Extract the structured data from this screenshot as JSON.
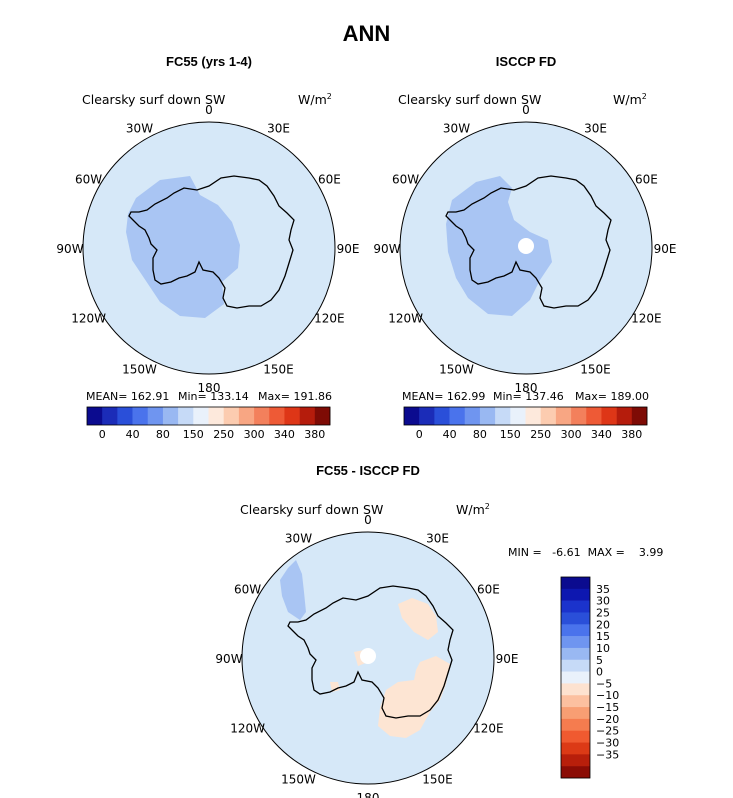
{
  "main_title": "ANN",
  "panels": {
    "p1": {
      "title": "FC55 (yrs 1-4)",
      "var_label": "Clearsky surf down SW",
      "units": "W/m",
      "units_sup": "2",
      "stats": {
        "mean": "MEAN= 162.91",
        "min": "Min= 133.14",
        "max": "Max= 191.86"
      }
    },
    "p2": {
      "title": "ISCCP FD",
      "var_label": "Clearsky surf down SW",
      "units": "W/m",
      "units_sup": "2",
      "stats": {
        "mean": "MEAN= 162.99",
        "min": "Min= 137.46",
        "max": "Max= 189.00"
      }
    },
    "p3": {
      "title": "FC55 - ISCCP FD",
      "var_label": "Clearsky surf down SW",
      "units": "W/m",
      "units_sup": "2",
      "minmax": "MIN =   -6.61  MAX =    3.99"
    }
  },
  "lon_labels": [
    "0",
    "30E",
    "60E",
    "90E",
    "120E",
    "150E",
    "180",
    "150W",
    "120W",
    "90W",
    "60W",
    "30W"
  ],
  "colorbar_abs": {
    "colors": [
      "#0b0b8f",
      "#1b2cb8",
      "#2a4fd9",
      "#4a73ec",
      "#6f95f0",
      "#99b8f2",
      "#c6daf7",
      "#e9f1fb",
      "#fde9dc",
      "#fcccb0",
      "#f8a683",
      "#f3805c",
      "#ee5a36",
      "#de3617",
      "#b51c0c",
      "#7e0b05"
    ],
    "tick_labels": [
      "0",
      "40",
      "80",
      "150",
      "250",
      "300",
      "340",
      "380"
    ]
  },
  "colorbar_diff": {
    "colors": [
      "#0b0b8f",
      "#0d17b0",
      "#1b33cc",
      "#2a4fd9",
      "#4a73ec",
      "#6f95f0",
      "#99b8f2",
      "#c6daf7",
      "#e9f1fb",
      "#fde2d0",
      "#fcc0a0",
      "#f89e73",
      "#f57c4f",
      "#f05a30",
      "#dc3a16",
      "#b81f0b",
      "#8b0c05"
    ],
    "tick_labels": [
      "35",
      "30",
      "25",
      "20",
      "15",
      "10",
      "5",
      "0",
      "−5",
      "−10",
      "−15",
      "−20",
      "−25",
      "−30",
      "−35"
    ]
  },
  "chart_data": [
    {
      "type": "heatmap",
      "title": "FC55 (yrs 1-4)",
      "variable": "Clearsky surf down SW",
      "units": "W/m2",
      "projection": "south polar stereographic",
      "stats": {
        "mean": 162.91,
        "min": 133.14,
        "max": 191.86
      },
      "colorbar_ticks": [
        0,
        40,
        80,
        150,
        250,
        300,
        340,
        380
      ],
      "fill_colors": {
        "background": "#d6e8f8",
        "low_region": "#a9c5f3"
      }
    },
    {
      "type": "heatmap",
      "title": "ISCCP FD",
      "variable": "Clearsky surf down SW",
      "units": "W/m2",
      "projection": "south polar stereographic",
      "stats": {
        "mean": 162.99,
        "min": 137.46,
        "max": 189.0
      },
      "colorbar_ticks": [
        0,
        40,
        80,
        150,
        250,
        300,
        340,
        380
      ],
      "fill_colors": {
        "background": "#d6e8f8",
        "low_region": "#a9c5f3"
      }
    },
    {
      "type": "heatmap",
      "title": "FC55 - ISCCP FD",
      "variable": "Clearsky surf down SW",
      "units": "W/m2",
      "projection": "south polar stereographic",
      "stats": {
        "min": -6.61,
        "max": 3.99
      },
      "colorbar_ticks": [
        35,
        30,
        25,
        20,
        15,
        10,
        5,
        0,
        -5,
        -10,
        -15,
        -20,
        -25,
        -30,
        -35
      ],
      "fill_colors": {
        "background": "#d6e8f8",
        "negative": "#a9c5f3",
        "positive": "#fde5d3"
      }
    }
  ]
}
